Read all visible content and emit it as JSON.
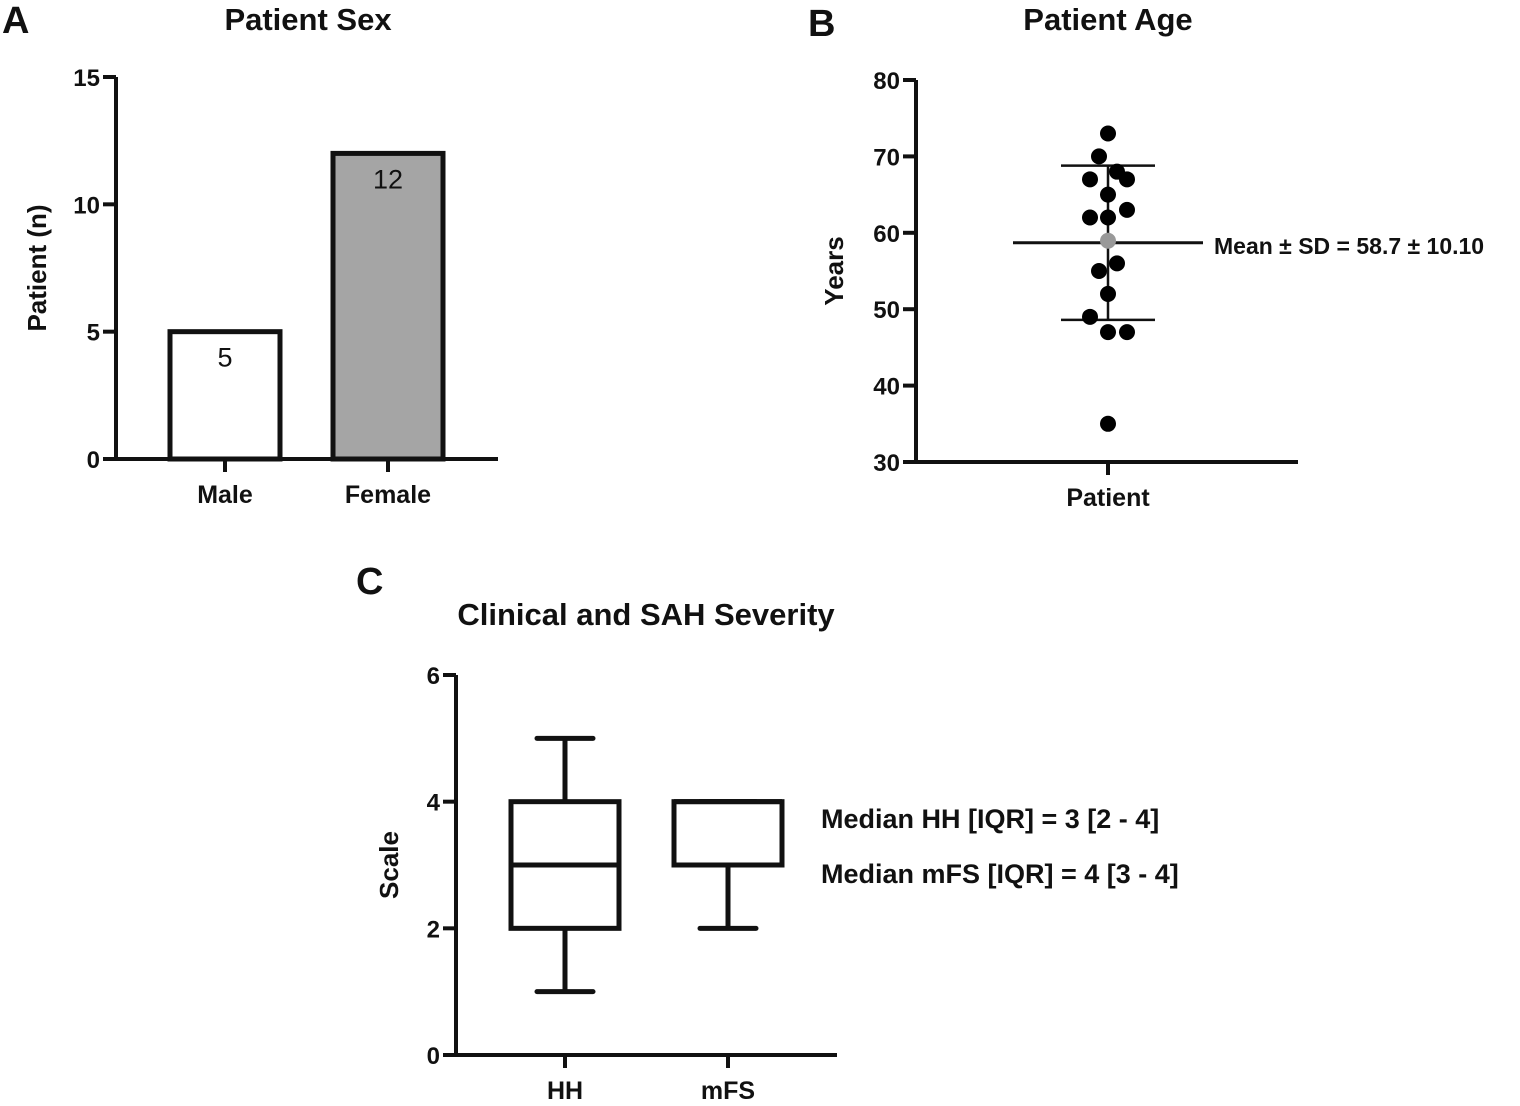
{
  "figure": {
    "panels": [
      "A",
      "B",
      "C"
    ]
  },
  "colors": {
    "axis": "#111111",
    "male_fill": "#ffffff",
    "female_fill": "#a5a5a5",
    "point": "#000000",
    "mean_point": "#999999"
  },
  "chart_data": [
    {
      "panel": "A",
      "type": "bar",
      "title": "Patient Sex",
      "xlabel": "",
      "ylabel": "Patient (n)",
      "ylim": [
        0,
        15
      ],
      "yticks": [
        0,
        5,
        10,
        15
      ],
      "grid": false,
      "categories": [
        "Male",
        "Female"
      ],
      "values": [
        5,
        12
      ],
      "data_labels": [
        "5",
        "12"
      ]
    },
    {
      "panel": "B",
      "type": "scatter",
      "title": "Patient Age",
      "xlabel": "",
      "ylabel": "Years",
      "ylim": [
        30,
        80
      ],
      "yticks": [
        30,
        40,
        50,
        60,
        70,
        80
      ],
      "grid": false,
      "categories": [
        "Patient"
      ],
      "points": [
        73,
        70,
        68,
        67,
        67,
        65,
        63,
        62,
        62,
        56,
        55,
        52,
        49,
        47,
        47,
        35
      ],
      "mean": 58.7,
      "sd": 10.1,
      "annotation": "Mean ± SD = 58.7 ± 10.10"
    },
    {
      "panel": "C",
      "type": "box",
      "title": "Clinical and SAH Severity",
      "xlabel": "",
      "ylabel": "Scale",
      "ylim": [
        0,
        6
      ],
      "yticks": [
        0,
        2,
        4,
        6
      ],
      "grid": false,
      "categories": [
        "HH",
        "mFS"
      ],
      "series": [
        {
          "name": "HH",
          "min": 1,
          "q1": 2,
          "median": 3,
          "q3": 4,
          "max": 5
        },
        {
          "name": "mFS",
          "min": 2,
          "q1": 3,
          "median": 4,
          "q3": 4,
          "max": 4
        }
      ],
      "annotations": [
        "Median HH [IQR] = 3 [2 - 4]",
        "Median mFS [IQR] = 4 [3 - 4]"
      ]
    }
  ]
}
